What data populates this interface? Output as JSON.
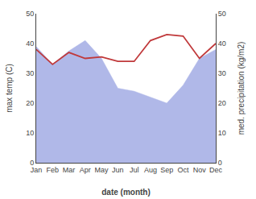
{
  "chart_data": {
    "type": "line",
    "categories": [
      "Jan",
      "Feb",
      "Mar",
      "Apr",
      "May",
      "Jun",
      "Jul",
      "Aug",
      "Sep",
      "Oct",
      "Nov",
      "Dec"
    ],
    "series": [
      {
        "type": "area",
        "color": "#b0b8e8",
        "values": [
          39,
          33,
          37.5,
          41,
          35,
          25,
          24,
          22,
          20,
          26,
          35,
          38
        ]
      },
      {
        "type": "line",
        "axis": "y2",
        "color": "#c0393b",
        "values": [
          38,
          33,
          37,
          35,
          35.5,
          34,
          34,
          41,
          43,
          42.5,
          35,
          40
        ]
      }
    ],
    "xlabel": "date (month)",
    "ylabel": "max temp (C)",
    "y2label": "med. precipitation (kg/m2)",
    "ylim": [
      0,
      50
    ],
    "yticks": [
      0,
      10,
      20,
      30,
      40,
      50
    ],
    "y2lim": [
      0,
      50
    ],
    "y2ticks": [
      0,
      10,
      20,
      30,
      40,
      50
    ],
    "grid": false
  }
}
